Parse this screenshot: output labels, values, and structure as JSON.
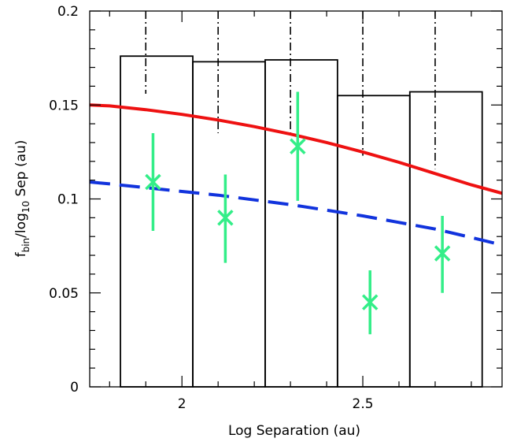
{
  "chart_data": {
    "type": "bar",
    "xlabel": "Log Separation (au)",
    "ylabel": {
      "f": "f",
      "bin": "bin",
      "mid": "/log",
      "ten": "10",
      "tail": " Sep (au)"
    },
    "xlim": [
      1.745,
      2.885
    ],
    "ylim": [
      0,
      0.2
    ],
    "x_ticks": [
      {
        "value": 2,
        "label": "2"
      },
      {
        "value": 2.5,
        "label": "2.5"
      }
    ],
    "y_ticks": [
      {
        "value": 0,
        "label": "0"
      },
      {
        "value": 0.05,
        "label": "0.05"
      },
      {
        "value": 0.1,
        "label": "0.1"
      },
      {
        "value": 0.15,
        "label": "0.15"
      },
      {
        "value": 0.2,
        "label": "0.2"
      }
    ],
    "histogram": {
      "bins": [
        {
          "x0": 1.83,
          "x1": 2.03,
          "value": 0.176
        },
        {
          "x0": 2.03,
          "x1": 2.23,
          "value": 0.173
        },
        {
          "x0": 2.23,
          "x1": 2.43,
          "value": 0.174
        },
        {
          "x0": 2.43,
          "x1": 2.63,
          "value": 0.155
        },
        {
          "x0": 2.63,
          "x1": 2.83,
          "value": 0.157
        }
      ],
      "color": "#000000"
    },
    "upper_lines": {
      "x": [
        1.9,
        2.1,
        2.3,
        2.5,
        2.7
      ],
      "low": [
        0.156,
        0.135,
        0.135,
        0.123,
        0.116
      ],
      "color": "#000000"
    },
    "points": {
      "x": [
        1.92,
        2.12,
        2.32,
        2.52,
        2.72
      ],
      "y": [
        0.109,
        0.09,
        0.128,
        0.045,
        0.071
      ],
      "err_low": [
        0.083,
        0.066,
        0.099,
        0.028,
        0.05
      ],
      "err_high": [
        0.135,
        0.113,
        0.157,
        0.062,
        0.091
      ],
      "color": "#33ee88"
    },
    "curves": [
      {
        "style": "solid",
        "color": "#ee1111",
        "x": [
          1.745,
          1.8,
          1.9,
          2.0,
          2.1,
          2.2,
          2.3,
          2.4,
          2.5,
          2.6,
          2.7,
          2.8,
          2.885
        ],
        "y": [
          0.15,
          0.1495,
          0.1475,
          0.145,
          0.142,
          0.1385,
          0.1345,
          0.13,
          0.125,
          0.1195,
          0.1135,
          0.1075,
          0.103
        ]
      },
      {
        "style": "dashed",
        "color": "#1133dd",
        "x": [
          1.745,
          1.8,
          1.9,
          2.0,
          2.1,
          2.2,
          2.3,
          2.4,
          2.5,
          2.6,
          2.7,
          2.8,
          2.885
        ],
        "y": [
          0.109,
          0.108,
          0.106,
          0.104,
          0.102,
          0.0995,
          0.097,
          0.094,
          0.091,
          0.0875,
          0.084,
          0.0795,
          0.0755
        ]
      }
    ]
  }
}
